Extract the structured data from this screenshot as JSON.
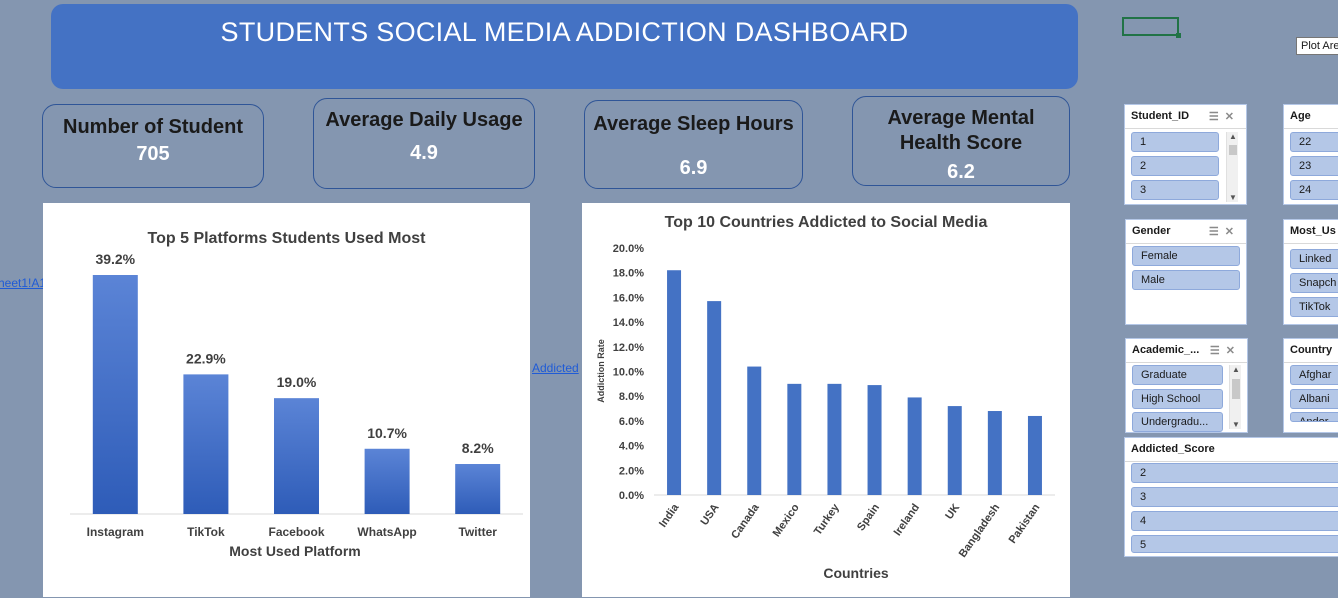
{
  "dashboard": {
    "title": "STUDENTS SOCIAL MEDIA ADDICTION DASHBOARD"
  },
  "kpis": {
    "students": {
      "label": "Number of Student",
      "value": "705"
    },
    "usage": {
      "label": "Average Daily Usage",
      "value": "4.9"
    },
    "sleep": {
      "label": "Average Sleep Hours",
      "value": "6.9"
    },
    "mental": {
      "label_line1": "Average Mental",
      "label_line2": "Health Score",
      "value": "6.2"
    }
  },
  "links": {
    "sheet_ref": "heet1!A1",
    "addicted_ref": "Addicted"
  },
  "tooltip": "Plot Area",
  "slicers": {
    "student_id": {
      "title": "Student_ID",
      "items": [
        "1",
        "2",
        "3"
      ]
    },
    "age": {
      "title": "Age",
      "items": [
        "22",
        "23",
        "24"
      ]
    },
    "gender": {
      "title": "Gender",
      "items": [
        "Female",
        "Male"
      ]
    },
    "most_used": {
      "title": "Most_Us",
      "items": [
        "Linked",
        "Snapch",
        "TikTok"
      ]
    },
    "academic": {
      "title": "Academic_...",
      "items": [
        "Graduate",
        "High School",
        "Undergradu..."
      ]
    },
    "country": {
      "title": "Country",
      "items": [
        "Afghar",
        "Albani",
        "Andor"
      ]
    },
    "addicted_score": {
      "title": "Addicted_Score",
      "items": [
        "2",
        "3",
        "4",
        "5"
      ]
    }
  },
  "chart_data": [
    {
      "type": "bar",
      "title": "Top 5 Platforms Students Used Most",
      "xlabel": "Most Used Platform",
      "ylabel": "",
      "categories": [
        "Instagram",
        "TikTok",
        "Facebook",
        "WhatsApp",
        "Twitter"
      ],
      "values": [
        39.2,
        22.9,
        19.0,
        10.7,
        8.2
      ],
      "data_labels": [
        "39.2%",
        "22.9%",
        "19.0%",
        "10.7%",
        "8.2%"
      ],
      "ylim": [
        0,
        40
      ],
      "color": "#4472c4",
      "grid": false,
      "legend": "none"
    },
    {
      "type": "bar",
      "title": "Top 10 Countries Addicted to Social Media",
      "xlabel": "Countries",
      "ylabel": "Addiction Rate",
      "categories": [
        "India",
        "USA",
        "Canada",
        "Mexico",
        "Turkey",
        "Spain",
        "Ireland",
        "UK",
        "Bangladesh",
        "Pakistan"
      ],
      "values": [
        18.2,
        15.7,
        10.4,
        9.0,
        9.0,
        8.9,
        7.9,
        7.2,
        6.8,
        6.4
      ],
      "yticks": [
        "0.0%",
        "2.0%",
        "4.0%",
        "6.0%",
        "8.0%",
        "10.0%",
        "12.0%",
        "14.0%",
        "16.0%",
        "18.0%",
        "20.0%"
      ],
      "ylim": [
        0,
        20
      ],
      "color": "#4472c4",
      "grid": false,
      "legend": "none"
    }
  ]
}
